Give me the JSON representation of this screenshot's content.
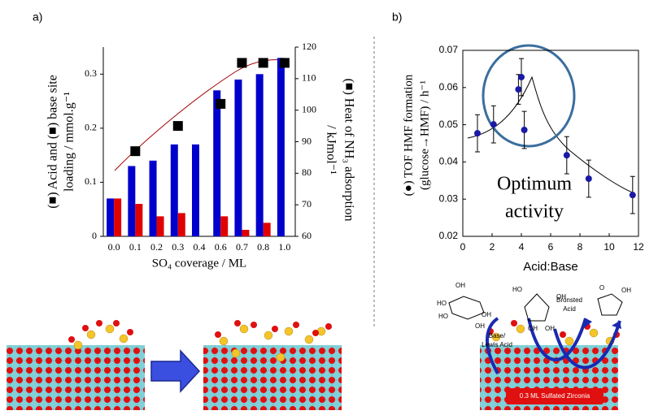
{
  "chart_data": [
    {
      "type": "bar",
      "categories": [
        "0.0",
        "0.1",
        "0.2",
        "0.3",
        "0.4",
        "0.6",
        "0.7",
        "0.8",
        "1.0"
      ],
      "xlabel": "SO₄ coverage / ML",
      "ylabel_lines": [
        "(■) Acid and (■) base site",
        "loading / mmol.g⁻¹"
      ],
      "y2label_lines": [
        "(■) Heat of NH₃ adsorption",
        "/ kJmol⁻¹"
      ],
      "ylim": [
        0,
        0.35
      ],
      "yticks": [
        0,
        0.1,
        0.2,
        0.3
      ],
      "y2lim": [
        60,
        120
      ],
      "y2ticks": [
        60,
        70,
        80,
        90,
        100,
        110,
        120
      ],
      "series": [
        {
          "type": "bar",
          "color": "#0000cc",
          "values": [
            0.07,
            0.13,
            0.14,
            0.17,
            0.17,
            0.27,
            0.29,
            0.3,
            0.33
          ]
        },
        {
          "type": "bar",
          "color": "#e00000",
          "values": [
            0.07,
            0.06,
            0.037,
            0.043,
            null,
            0.037,
            0.012,
            0.025,
            null
          ]
        },
        {
          "type": "scatter",
          "axis": "y2",
          "color": "#000000",
          "values": [
            null,
            87,
            null,
            95,
            null,
            102,
            115,
            115,
            115
          ]
        }
      ]
    },
    {
      "type": "scatter",
      "xlabel": "Acid:Base",
      "ylabel_lines": [
        "(●) TOF HMF formation",
        "(glucose→HMF) / h⁻¹"
      ],
      "annotation_lines": [
        "Optimum",
        "activity"
      ],
      "xlim": [
        0,
        12
      ],
      "xticks": [
        0,
        2,
        4,
        6,
        8,
        10,
        12
      ],
      "ylim": [
        0.02,
        0.07
      ],
      "yticks": [
        0.02,
        0.03,
        0.04,
        0.05,
        0.06,
        0.07
      ],
      "series": [
        {
          "color": "#1a1aa6",
          "x": [
            1.0,
            2.1,
            3.8,
            4.0,
            4.2,
            7.1,
            8.6,
            11.6
          ],
          "values": [
            0.0477,
            0.0501,
            0.0595,
            0.0628,
            0.0486,
            0.0418,
            0.0355,
            0.0311
          ],
          "errors": [
            0.005,
            0.005,
            0.004,
            0.005,
            0.005,
            0.005,
            0.005,
            0.005
          ]
        }
      ]
    }
  ],
  "panel_labels": [
    "a)",
    "b)"
  ],
  "scheme": {
    "arrow_labels": [
      [
        "Base/",
        "Lewis Acid"
      ],
      [
        "Brönsted",
        "Acid"
      ]
    ],
    "surface_label": "0.3 ML Sulfated Zirconia",
    "molecule_labels": [
      "OH",
      "HO",
      "HO",
      "OH",
      "OH",
      "HO",
      "OH",
      "OH",
      "OH",
      "O",
      "OH"
    ]
  }
}
